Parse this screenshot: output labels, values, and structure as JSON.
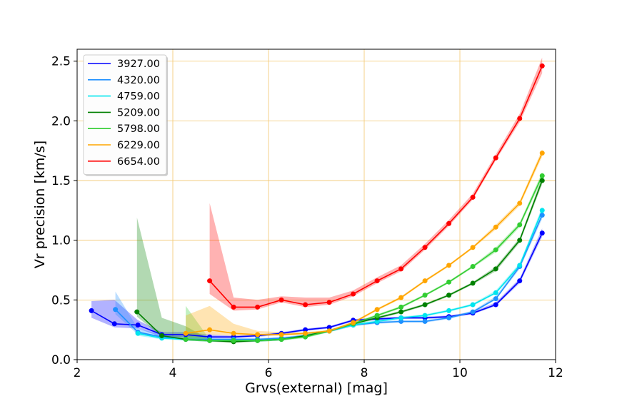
{
  "chart_data": {
    "type": "line",
    "title": "",
    "xlabel": "Grvs(external) [mag]",
    "ylabel": "Vr precision [km/s]",
    "xlim": [
      2,
      12
    ],
    "ylim": [
      0,
      2.6
    ],
    "xticks": [
      2,
      4,
      6,
      8,
      10,
      12
    ],
    "yticks": [
      0.0,
      0.5,
      1.0,
      1.5,
      2.0,
      2.5
    ],
    "xtick_labels": [
      "2",
      "4",
      "6",
      "8",
      "10",
      "12"
    ],
    "ytick_labels": [
      "0.0",
      "0.5",
      "1.0",
      "1.5",
      "2.0",
      "2.5"
    ],
    "grid": true,
    "grid_color": "#f2c66d",
    "legend_position": "top-left",
    "series": [
      {
        "name": "3927.00",
        "color": "#0000ff",
        "x": [
          2.3,
          2.78,
          3.27,
          3.77,
          4.27,
          4.77,
          5.27,
          5.77,
          6.27,
          6.77,
          7.27,
          7.77,
          8.27,
          8.77,
          9.27,
          9.77,
          10.27,
          10.75,
          11.25,
          11.72
        ],
        "y": [
          0.41,
          0.3,
          0.29,
          0.21,
          0.21,
          0.19,
          0.19,
          0.2,
          0.22,
          0.25,
          0.27,
          0.33,
          0.34,
          0.35,
          0.35,
          0.36,
          0.39,
          0.46,
          0.66,
          1.06
        ],
        "lower": [
          0.35,
          0.27,
          0.26,
          0.19,
          0.19,
          0.18,
          0.18,
          0.19,
          0.21,
          0.24,
          0.26,
          0.32,
          0.33,
          0.34,
          0.34,
          0.35,
          0.38,
          0.45,
          0.64,
          1.03
        ],
        "upper": [
          0.49,
          0.5,
          0.33,
          0.23,
          0.23,
          0.21,
          0.2,
          0.21,
          0.23,
          0.26,
          0.28,
          0.34,
          0.35,
          0.36,
          0.36,
          0.37,
          0.4,
          0.48,
          0.68,
          1.1
        ]
      },
      {
        "name": "4320.00",
        "color": "#1e90ff",
        "x": [
          2.8,
          3.27,
          3.77,
          4.27,
          4.77,
          5.27,
          5.77,
          6.27,
          6.77,
          7.27,
          7.77,
          8.27,
          8.77,
          9.27,
          9.77,
          10.27,
          10.75,
          11.25,
          11.72
        ],
        "y": [
          0.42,
          0.23,
          0.19,
          0.17,
          0.17,
          0.17,
          0.17,
          0.18,
          0.2,
          0.24,
          0.29,
          0.31,
          0.32,
          0.32,
          0.35,
          0.4,
          0.51,
          0.78,
          1.21
        ],
        "lower": [
          0.38,
          0.21,
          0.18,
          0.16,
          0.16,
          0.16,
          0.16,
          0.17,
          0.19,
          0.23,
          0.28,
          0.3,
          0.31,
          0.31,
          0.34,
          0.39,
          0.5,
          0.76,
          1.18
        ],
        "upper": [
          0.57,
          0.26,
          0.21,
          0.19,
          0.18,
          0.18,
          0.18,
          0.19,
          0.21,
          0.25,
          0.3,
          0.32,
          0.33,
          0.33,
          0.36,
          0.41,
          0.53,
          0.8,
          1.24
        ]
      },
      {
        "name": "4759.00",
        "color": "#00e5ee",
        "x": [
          3.27,
          3.77,
          4.27,
          4.77,
          5.27,
          5.77,
          6.27,
          6.77,
          7.27,
          7.77,
          8.27,
          8.77,
          9.27,
          9.77,
          10.27,
          10.75,
          11.25,
          11.72
        ],
        "y": [
          0.22,
          0.18,
          0.17,
          0.16,
          0.16,
          0.16,
          0.17,
          0.2,
          0.24,
          0.29,
          0.32,
          0.35,
          0.37,
          0.41,
          0.46,
          0.56,
          0.79,
          1.25
        ],
        "lower": [
          0.2,
          0.17,
          0.16,
          0.15,
          0.15,
          0.15,
          0.16,
          0.19,
          0.23,
          0.28,
          0.31,
          0.34,
          0.36,
          0.4,
          0.45,
          0.55,
          0.77,
          1.22
        ],
        "upper": [
          0.24,
          0.19,
          0.18,
          0.17,
          0.17,
          0.17,
          0.18,
          0.21,
          0.25,
          0.3,
          0.33,
          0.36,
          0.38,
          0.42,
          0.47,
          0.58,
          0.81,
          1.28
        ]
      },
      {
        "name": "5209.00",
        "color": "#008000",
        "x": [
          3.25,
          3.77,
          4.27,
          4.77,
          5.27,
          5.77,
          6.27,
          6.77,
          7.27,
          7.77,
          8.27,
          8.77,
          9.27,
          9.77,
          10.27,
          10.75,
          11.25,
          11.72
        ],
        "y": [
          0.4,
          0.2,
          0.17,
          0.16,
          0.15,
          0.16,
          0.17,
          0.2,
          0.24,
          0.3,
          0.35,
          0.4,
          0.46,
          0.54,
          0.64,
          0.76,
          1.0,
          1.5
        ],
        "lower": [
          0.36,
          0.19,
          0.16,
          0.15,
          0.14,
          0.15,
          0.16,
          0.19,
          0.23,
          0.29,
          0.34,
          0.39,
          0.45,
          0.53,
          0.63,
          0.74,
          0.98,
          1.47
        ],
        "upper": [
          1.19,
          0.35,
          0.28,
          0.17,
          0.16,
          0.17,
          0.18,
          0.21,
          0.25,
          0.31,
          0.36,
          0.41,
          0.47,
          0.55,
          0.65,
          0.78,
          1.02,
          1.53
        ]
      },
      {
        "name": "5798.00",
        "color": "#32cd32",
        "x": [
          4.27,
          4.77,
          5.27,
          5.77,
          6.27,
          6.77,
          7.27,
          7.77,
          8.27,
          8.77,
          9.27,
          9.77,
          10.27,
          10.75,
          11.25,
          11.72
        ],
        "y": [
          0.17,
          0.16,
          0.16,
          0.16,
          0.17,
          0.19,
          0.24,
          0.3,
          0.37,
          0.44,
          0.54,
          0.65,
          0.78,
          0.92,
          1.13,
          1.54
        ],
        "lower": [
          0.16,
          0.15,
          0.15,
          0.15,
          0.16,
          0.18,
          0.23,
          0.29,
          0.36,
          0.43,
          0.53,
          0.64,
          0.77,
          0.9,
          1.11,
          1.51
        ],
        "upper": [
          0.45,
          0.17,
          0.17,
          0.17,
          0.18,
          0.2,
          0.25,
          0.31,
          0.38,
          0.45,
          0.55,
          0.66,
          0.79,
          0.94,
          1.15,
          1.57
        ]
      },
      {
        "name": "6229.00",
        "color": "#ffa500",
        "x": [
          4.27,
          4.77,
          5.27,
          5.77,
          6.27,
          6.77,
          7.27,
          7.77,
          8.27,
          8.77,
          9.27,
          9.77,
          10.27,
          10.75,
          11.25,
          11.72
        ],
        "y": [
          0.22,
          0.25,
          0.22,
          0.21,
          0.21,
          0.22,
          0.24,
          0.31,
          0.42,
          0.52,
          0.66,
          0.79,
          0.94,
          1.11,
          1.31,
          1.73
        ],
        "lower": [
          0.2,
          0.21,
          0.2,
          0.2,
          0.2,
          0.21,
          0.23,
          0.3,
          0.41,
          0.51,
          0.65,
          0.78,
          0.93,
          1.09,
          1.29,
          1.7
        ],
        "upper": [
          0.37,
          0.45,
          0.3,
          0.24,
          0.23,
          0.23,
          0.25,
          0.32,
          0.43,
          0.53,
          0.67,
          0.8,
          0.95,
          1.13,
          1.33,
          1.76
        ]
      },
      {
        "name": "6654.00",
        "color": "#ff0000",
        "x": [
          4.77,
          5.27,
          5.77,
          6.27,
          6.77,
          7.27,
          7.77,
          8.27,
          8.77,
          9.27,
          9.77,
          10.27,
          10.75,
          11.25,
          11.72
        ],
        "y": [
          0.66,
          0.44,
          0.44,
          0.5,
          0.46,
          0.48,
          0.55,
          0.66,
          0.76,
          0.94,
          1.14,
          1.36,
          1.69,
          2.02,
          2.46
        ],
        "lower": [
          0.55,
          0.41,
          0.42,
          0.48,
          0.44,
          0.46,
          0.53,
          0.64,
          0.74,
          0.92,
          1.12,
          1.34,
          1.67,
          1.99,
          2.4
        ],
        "upper": [
          1.31,
          0.52,
          0.5,
          0.53,
          0.52,
          0.52,
          0.58,
          0.69,
          0.79,
          0.97,
          1.17,
          1.39,
          1.72,
          2.06,
          2.53
        ]
      }
    ]
  }
}
